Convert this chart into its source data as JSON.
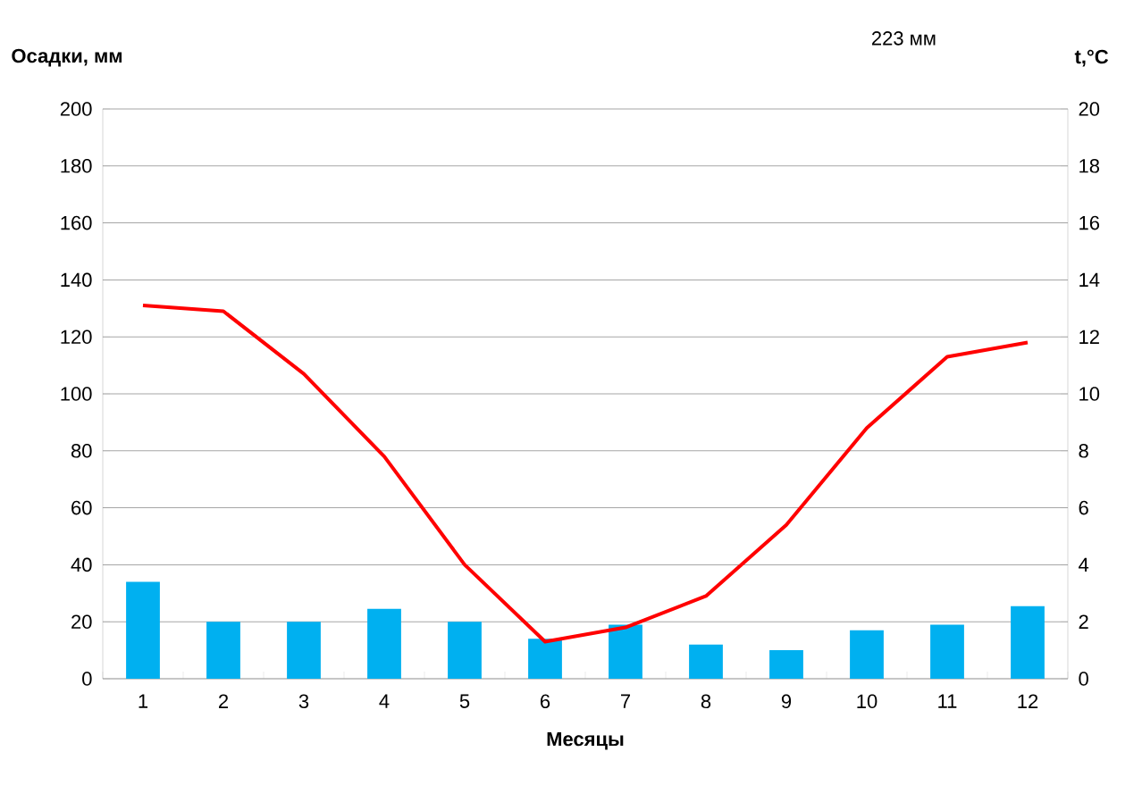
{
  "chart_data": {
    "type": "bar",
    "categories": [
      "1",
      "2",
      "3",
      "4",
      "5",
      "6",
      "7",
      "8",
      "9",
      "10",
      "11",
      "12"
    ],
    "series": [
      {
        "color": "#00b0f0",
        "values": [
          34,
          20,
          20,
          24.5,
          20,
          14,
          19,
          12,
          10,
          17,
          19,
          25.5
        ]
      },
      {
        "type": "line",
        "axis": "y2",
        "color": "#ff0000",
        "marker": "none",
        "values": [
          13.1,
          12.9,
          10.7,
          7.8,
          4.0,
          1.3,
          1.8,
          2.9,
          5.4,
          8.8,
          11.3,
          11.8
        ]
      }
    ],
    "xlabel": "Месяцы",
    "ylabel": "Осадки, мм",
    "y2label": "t,°C",
    "annotations": [
      "223 мм"
    ],
    "ylim": [
      0,
      200
    ],
    "yticks": [
      0,
      20,
      40,
      60,
      80,
      100,
      120,
      140,
      160,
      180,
      200
    ],
    "y2lim": [
      0,
      20
    ],
    "y2ticks": [
      0,
      2,
      4,
      6,
      8,
      10,
      12,
      14,
      16,
      18,
      20
    ],
    "grid": "y"
  }
}
